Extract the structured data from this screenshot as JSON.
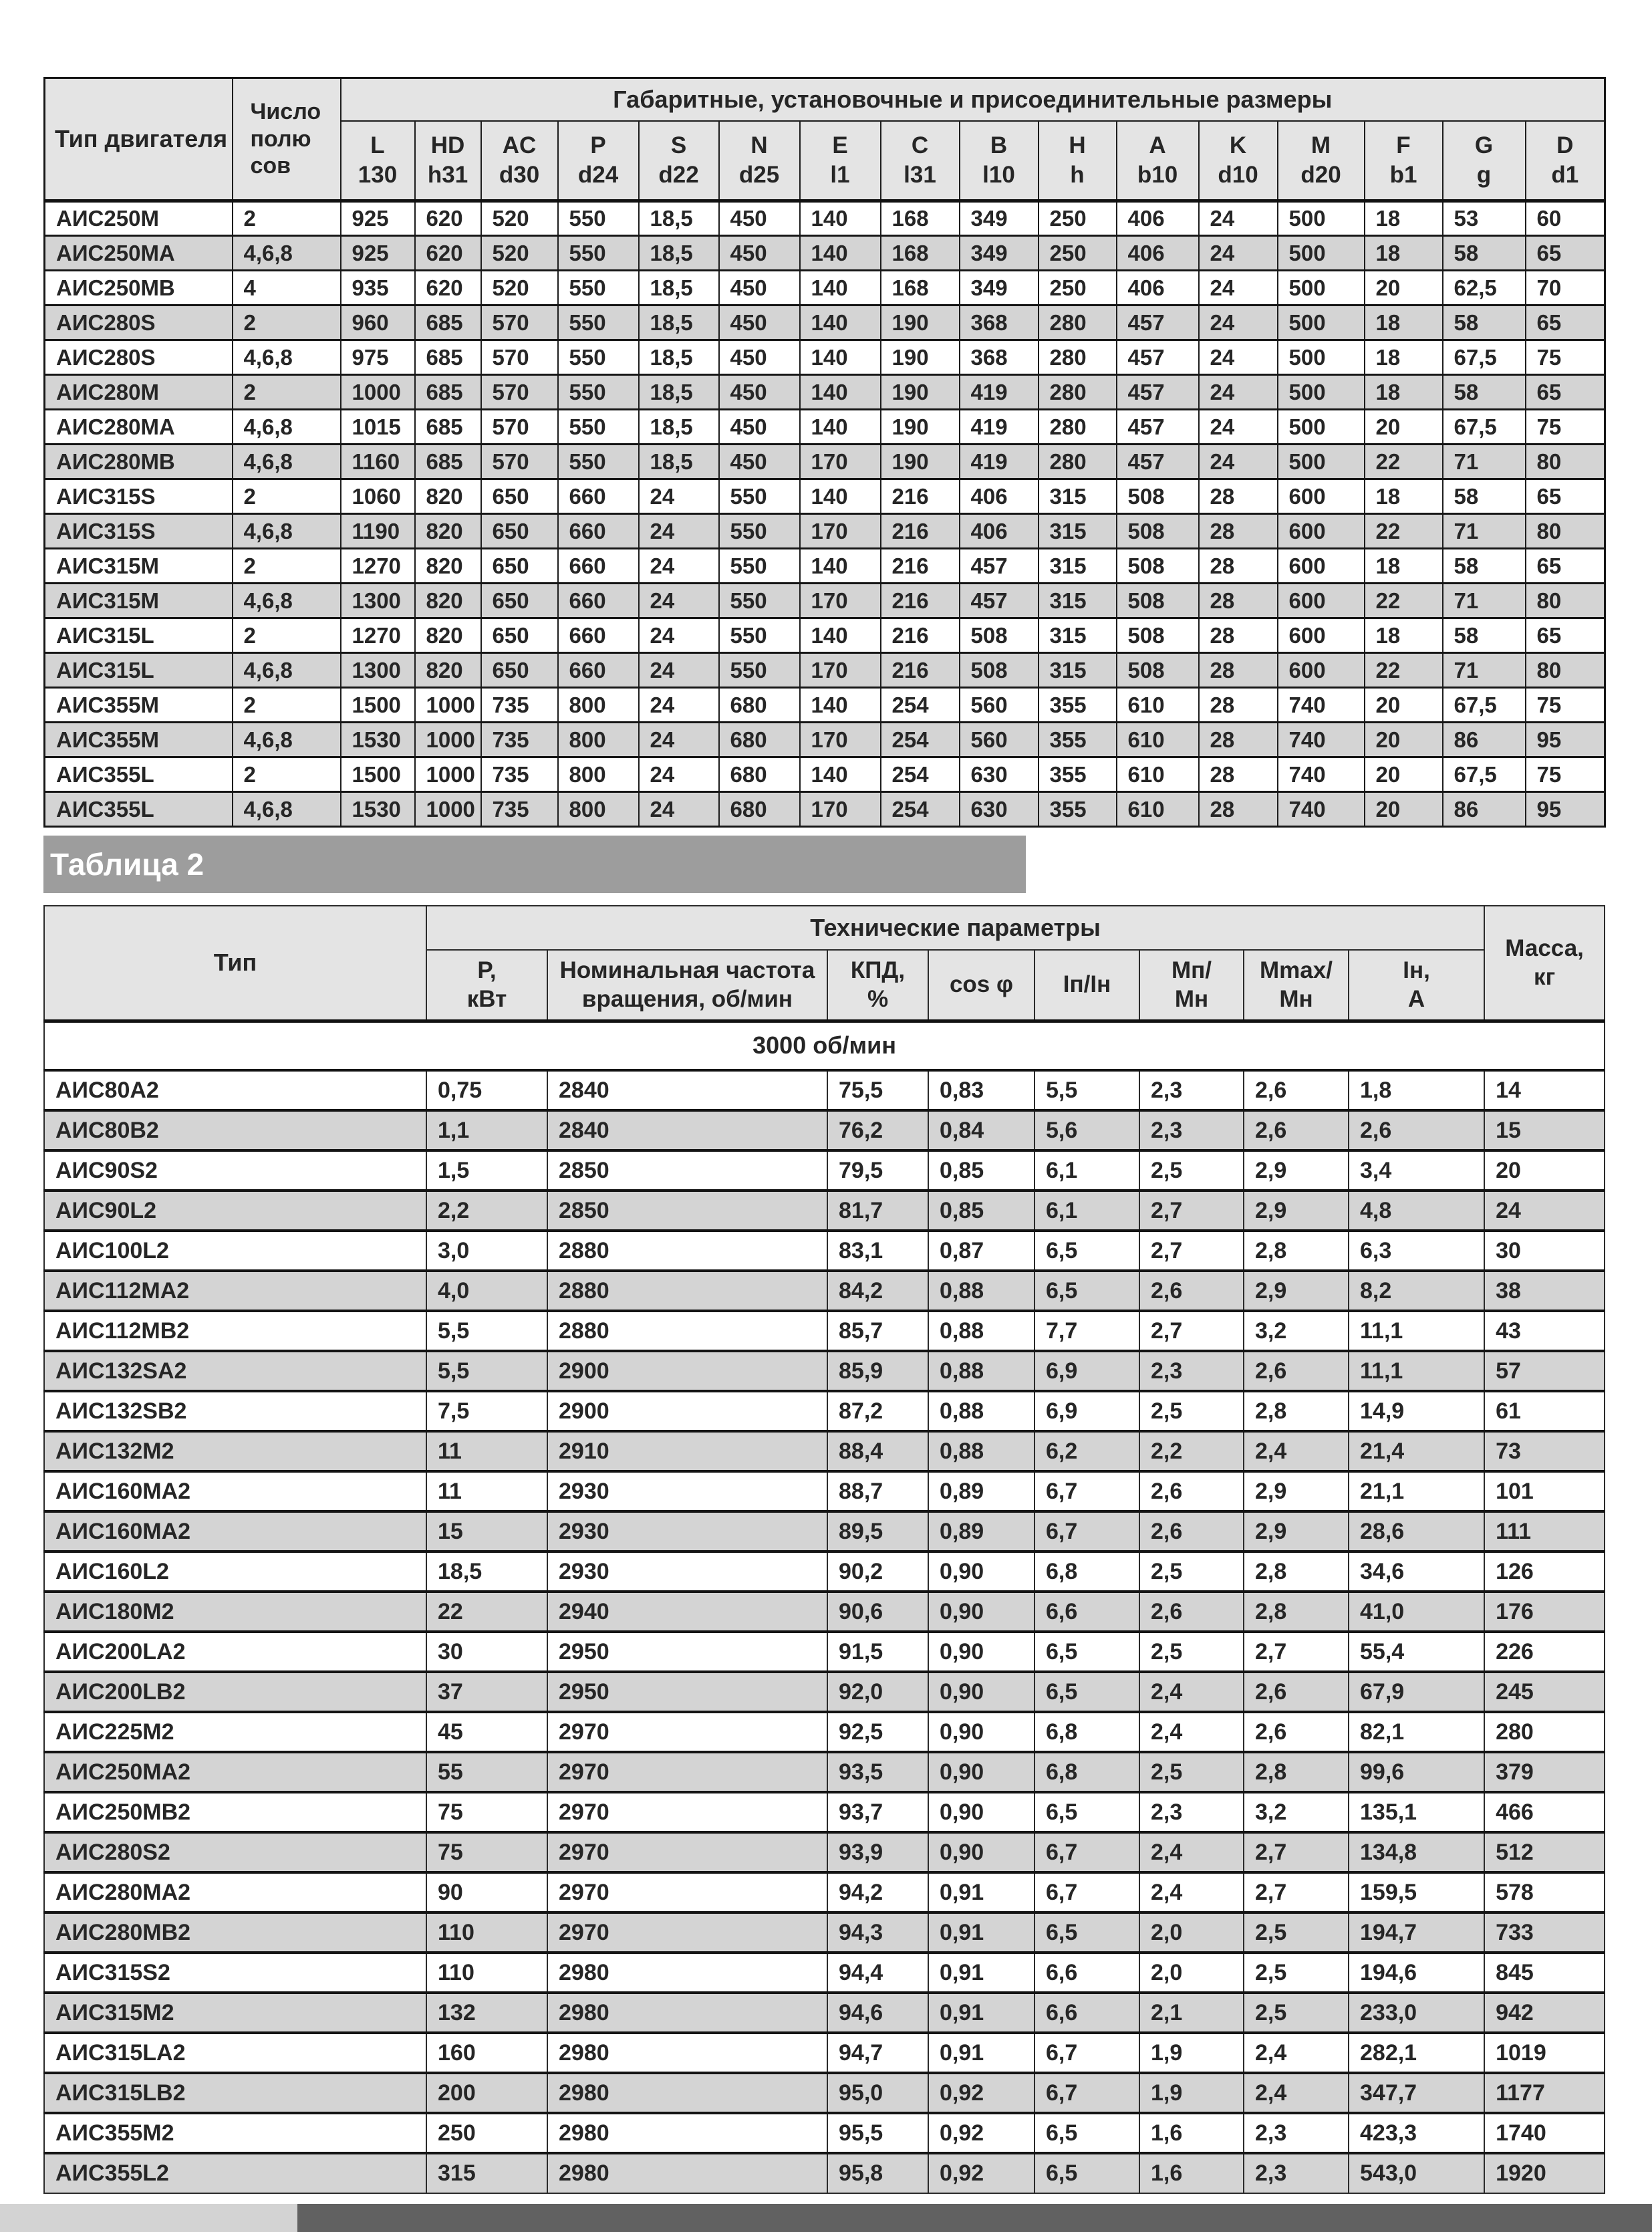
{
  "colors": {
    "table_header_bg": "#e4e4e4",
    "row_alt_bg": "#d4d4d4",
    "caption_bar_bg": "#9d9d9d",
    "footer_light": "#d3d3d3",
    "footer_dark": "#616161",
    "border": "#1d1d1d",
    "text": "#262626"
  },
  "table1": {
    "col1_header": "Тип двигателя",
    "col2_header_lines": [
      "Число",
      "полю",
      "сов"
    ],
    "group_header": "Габаритные, установочные и присоединительные размеры",
    "columns": [
      {
        "a": "L",
        "b": "130"
      },
      {
        "a": "HD",
        "b": "h31"
      },
      {
        "a": "AC",
        "b": "d30"
      },
      {
        "a": "P",
        "b": "d24"
      },
      {
        "a": "S",
        "b": "d22"
      },
      {
        "a": "N",
        "b": "d25"
      },
      {
        "a": "E",
        "b": "l1"
      },
      {
        "a": "C",
        "b": "l31"
      },
      {
        "a": "B",
        "b": "l10"
      },
      {
        "a": "H",
        "b": "h"
      },
      {
        "a": "A",
        "b": "b10"
      },
      {
        "a": "K",
        "b": "d10"
      },
      {
        "a": "M",
        "b": "d20"
      },
      {
        "a": "F",
        "b": "b1"
      },
      {
        "a": "G",
        "b": "g"
      },
      {
        "a": "D",
        "b": "d1"
      }
    ],
    "rows": [
      [
        "АИС250М",
        "2",
        "925",
        "620",
        "520",
        "550",
        "18,5",
        "450",
        "140",
        "168",
        "349",
        "250",
        "406",
        "24",
        "500",
        "18",
        "53",
        "60"
      ],
      [
        "АИС250МА",
        "4,6,8",
        "925",
        "620",
        "520",
        "550",
        "18,5",
        "450",
        "140",
        "168",
        "349",
        "250",
        "406",
        "24",
        "500",
        "18",
        "58",
        "65"
      ],
      [
        "АИС250МВ",
        "4",
        "935",
        "620",
        "520",
        "550",
        "18,5",
        "450",
        "140",
        "168",
        "349",
        "250",
        "406",
        "24",
        "500",
        "20",
        "62,5",
        "70"
      ],
      [
        "АИС280S",
        "2",
        "960",
        "685",
        "570",
        "550",
        "18,5",
        "450",
        "140",
        "190",
        "368",
        "280",
        "457",
        "24",
        "500",
        "18",
        "58",
        "65"
      ],
      [
        "АИС280S",
        "4,6,8",
        "975",
        "685",
        "570",
        "550",
        "18,5",
        "450",
        "140",
        "190",
        "368",
        "280",
        "457",
        "24",
        "500",
        "18",
        "67,5",
        "75"
      ],
      [
        "АИС280М",
        "2",
        "1000",
        "685",
        "570",
        "550",
        "18,5",
        "450",
        "140",
        "190",
        "419",
        "280",
        "457",
        "24",
        "500",
        "18",
        "58",
        "65"
      ],
      [
        "АИС280МА",
        "4,6,8",
        "1015",
        "685",
        "570",
        "550",
        "18,5",
        "450",
        "140",
        "190",
        "419",
        "280",
        "457",
        "24",
        "500",
        "20",
        "67,5",
        "75"
      ],
      [
        "АИС280МВ",
        "4,6,8",
        "1160",
        "685",
        "570",
        "550",
        "18,5",
        "450",
        "170",
        "190",
        "419",
        "280",
        "457",
        "24",
        "500",
        "22",
        "71",
        "80"
      ],
      [
        "АИС315S",
        "2",
        "1060",
        "820",
        "650",
        "660",
        "24",
        "550",
        "140",
        "216",
        "406",
        "315",
        "508",
        "28",
        "600",
        "18",
        "58",
        "65"
      ],
      [
        "АИС315S",
        "4,6,8",
        "1190",
        "820",
        "650",
        "660",
        "24",
        "550",
        "170",
        "216",
        "406",
        "315",
        "508",
        "28",
        "600",
        "22",
        "71",
        "80"
      ],
      [
        "АИС315М",
        "2",
        "1270",
        "820",
        "650",
        "660",
        "24",
        "550",
        "140",
        "216",
        "457",
        "315",
        "508",
        "28",
        "600",
        "18",
        "58",
        "65"
      ],
      [
        "АИС315М",
        "4,6,8",
        "1300",
        "820",
        "650",
        "660",
        "24",
        "550",
        "170",
        "216",
        "457",
        "315",
        "508",
        "28",
        "600",
        "22",
        "71",
        "80"
      ],
      [
        "АИС315L",
        "2",
        "1270",
        "820",
        "650",
        "660",
        "24",
        "550",
        "140",
        "216",
        "508",
        "315",
        "508",
        "28",
        "600",
        "18",
        "58",
        "65"
      ],
      [
        "АИС315L",
        "4,6,8",
        "1300",
        "820",
        "650",
        "660",
        "24",
        "550",
        "170",
        "216",
        "508",
        "315",
        "508",
        "28",
        "600",
        "22",
        "71",
        "80"
      ],
      [
        "АИС355М",
        "2",
        "1500",
        "1000",
        "735",
        "800",
        "24",
        "680",
        "140",
        "254",
        "560",
        "355",
        "610",
        "28",
        "740",
        "20",
        "67,5",
        "75"
      ],
      [
        "АИС355М",
        "4,6,8",
        "1530",
        "1000",
        "735",
        "800",
        "24",
        "680",
        "170",
        "254",
        "560",
        "355",
        "610",
        "28",
        "740",
        "20",
        "86",
        "95"
      ],
      [
        "АИС355L",
        "2",
        "1500",
        "1000",
        "735",
        "800",
        "24",
        "680",
        "140",
        "254",
        "630",
        "355",
        "610",
        "28",
        "740",
        "20",
        "67,5",
        "75"
      ],
      [
        "АИС355L",
        "4,6,8",
        "1530",
        "1000",
        "735",
        "800",
        "24",
        "680",
        "170",
        "254",
        "630",
        "355",
        "610",
        "28",
        "740",
        "20",
        "86",
        "95"
      ]
    ]
  },
  "table2_caption": "Таблица 2",
  "table2": {
    "col1_header": "Тип",
    "group_header": "Технические параметры",
    "mass_header_lines": [
      "Масса,",
      "кг"
    ],
    "columns": [
      {
        "a": "Р,",
        "b": "кВт"
      },
      {
        "a": "Номинальная частота",
        "b": "вращения, об/мин"
      },
      {
        "a": "КПД,",
        "b": "%"
      },
      {
        "a": "cos φ",
        "b": ""
      },
      {
        "a": "Iп/Iн",
        "b": ""
      },
      {
        "a": "Мп/",
        "b": "Мн"
      },
      {
        "a": "Mmax/",
        "b": "Мн"
      },
      {
        "a": "Iн,",
        "b": "А"
      }
    ],
    "speed_group": "3000 об/мин",
    "rows": [
      [
        "АИС80А2",
        "0,75",
        "2840",
        "75,5",
        "0,83",
        "5,5",
        "2,3",
        "2,6",
        "1,8",
        "14"
      ],
      [
        "АИС80В2",
        "1,1",
        "2840",
        "76,2",
        "0,84",
        "5,6",
        "2,3",
        "2,6",
        "2,6",
        "15"
      ],
      [
        "АИС90S2",
        "1,5",
        "2850",
        "79,5",
        "0,85",
        "6,1",
        "2,5",
        "2,9",
        "3,4",
        "20"
      ],
      [
        "АИС90L2",
        "2,2",
        "2850",
        "81,7",
        "0,85",
        "6,1",
        "2,7",
        "2,9",
        "4,8",
        "24"
      ],
      [
        "АИС100L2",
        "3,0",
        "2880",
        "83,1",
        "0,87",
        "6,5",
        "2,7",
        "2,8",
        "6,3",
        "30"
      ],
      [
        "АИС112МА2",
        "4,0",
        "2880",
        "84,2",
        "0,88",
        "6,5",
        "2,6",
        "2,9",
        "8,2",
        "38"
      ],
      [
        "АИС112МВ2",
        "5,5",
        "2880",
        "85,7",
        "0,88",
        "7,7",
        "2,7",
        "3,2",
        "11,1",
        "43"
      ],
      [
        "АИС132SA2",
        "5,5",
        "2900",
        "85,9",
        "0,88",
        "6,9",
        "2,3",
        "2,6",
        "11,1",
        "57"
      ],
      [
        "АИС132SB2",
        "7,5",
        "2900",
        "87,2",
        "0,88",
        "6,9",
        "2,5",
        "2,8",
        "14,9",
        "61"
      ],
      [
        "АИС132М2",
        "11",
        "2910",
        "88,4",
        "0,88",
        "6,2",
        "2,2",
        "2,4",
        "21,4",
        "73"
      ],
      [
        "АИС160МА2",
        "11",
        "2930",
        "88,7",
        "0,89",
        "6,7",
        "2,6",
        "2,9",
        "21,1",
        "101"
      ],
      [
        "АИС160МА2",
        "15",
        "2930",
        "89,5",
        "0,89",
        "6,7",
        "2,6",
        "2,9",
        "28,6",
        "111"
      ],
      [
        "АИС160L2",
        "18,5",
        "2930",
        "90,2",
        "0,90",
        "6,8",
        "2,5",
        "2,8",
        "34,6",
        "126"
      ],
      [
        "АИС180М2",
        "22",
        "2940",
        "90,6",
        "0,90",
        "6,6",
        "2,6",
        "2,8",
        "41,0",
        "176"
      ],
      [
        "АИС200LA2",
        "30",
        "2950",
        "91,5",
        "0,90",
        "6,5",
        "2,5",
        "2,7",
        "55,4",
        "226"
      ],
      [
        "АИС200LB2",
        "37",
        "2950",
        "92,0",
        "0,90",
        "6,5",
        "2,4",
        "2,6",
        "67,9",
        "245"
      ],
      [
        "АИС225М2",
        "45",
        "2970",
        "92,5",
        "0,90",
        "6,8",
        "2,4",
        "2,6",
        "82,1",
        "280"
      ],
      [
        "АИС250МА2",
        "55",
        "2970",
        "93,5",
        "0,90",
        "6,8",
        "2,5",
        "2,8",
        "99,6",
        "379"
      ],
      [
        "АИС250МВ2",
        "75",
        "2970",
        "93,7",
        "0,90",
        "6,5",
        "2,3",
        "3,2",
        "135,1",
        "466"
      ],
      [
        "АИС280S2",
        "75",
        "2970",
        "93,9",
        "0,90",
        "6,7",
        "2,4",
        "2,7",
        "134,8",
        "512"
      ],
      [
        "АИС280МА2",
        "90",
        "2970",
        "94,2",
        "0,91",
        "6,7",
        "2,4",
        "2,7",
        "159,5",
        "578"
      ],
      [
        "АИС280МВ2",
        "110",
        "2970",
        "94,3",
        "0,91",
        "6,5",
        "2,0",
        "2,5",
        "194,7",
        "733"
      ],
      [
        "АИС315S2",
        "110",
        "2980",
        "94,4",
        "0,91",
        "6,6",
        "2,0",
        "2,5",
        "194,6",
        "845"
      ],
      [
        "АИС315М2",
        "132",
        "2980",
        "94,6",
        "0,91",
        "6,6",
        "2,1",
        "2,5",
        "233,0",
        "942"
      ],
      [
        "АИС315LA2",
        "160",
        "2980",
        "94,7",
        "0,91",
        "6,7",
        "1,9",
        "2,4",
        "282,1",
        "1019"
      ],
      [
        "АИС315LB2",
        "200",
        "2980",
        "95,0",
        "0,92",
        "6,7",
        "1,9",
        "2,4",
        "347,7",
        "1177"
      ],
      [
        "АИС355М2",
        "250",
        "2980",
        "95,5",
        "0,92",
        "6,5",
        "1,6",
        "2,3",
        "423,3",
        "1740"
      ],
      [
        "АИС355L2",
        "315",
        "2980",
        "95,8",
        "0,92",
        "6,5",
        "1,6",
        "2,3",
        "543,0",
        "1920"
      ]
    ]
  }
}
